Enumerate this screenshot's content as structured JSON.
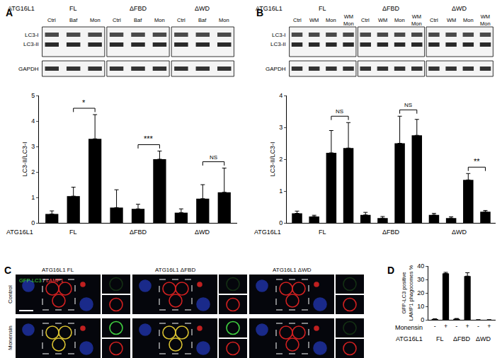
{
  "panel_labels": [
    "A",
    "B",
    "C",
    "D"
  ],
  "blots": [
    {
      "group_title": "ATG16L1",
      "groups": [
        "FL",
        "ΔFBD",
        "ΔWD"
      ],
      "lanes": [
        "Ctrl",
        "Baf",
        "Mon",
        "Ctrl",
        "Baf",
        "Mon",
        "Ctrl",
        "Baf",
        "Mon"
      ],
      "bands": [
        "LC3-I",
        "LC3-II"
      ],
      "loading": "GAPDH"
    },
    {
      "group_title": "ATG16L1",
      "groups": [
        "FL",
        "ΔFBD",
        "ΔWD"
      ],
      "lanes": [
        "Ctrl",
        "WM",
        "Mon",
        "WM\nMon",
        "Ctrl",
        "WM",
        "Mon",
        "WM\nMon",
        "Ctrl",
        "WM",
        "Mon",
        "WM\nMon"
      ],
      "bands": [
        "LC3-I",
        "LC3-II"
      ],
      "loading": "GAPDH"
    }
  ],
  "chart_data": [
    {
      "type": "bar",
      "categories": [
        null,
        null,
        null,
        null,
        null,
        null,
        null,
        null,
        null
      ],
      "values": [
        0.35,
        1.05,
        3.3,
        0.6,
        0.55,
        2.5,
        0.4,
        0.95,
        1.2
      ],
      "errors": [
        0.12,
        0.35,
        0.95,
        0.7,
        0.18,
        0.32,
        0.15,
        0.55,
        0.95
      ],
      "color": "#000000",
      "ylim": [
        0,
        5
      ],
      "yticks": [
        0,
        1,
        2,
        3,
        4,
        5
      ],
      "ylabel": "LC3-II/LC3-I",
      "tick_labels": "y",
      "grid": false,
      "group_title": "ATG16L1",
      "groups": [
        "FL",
        "ΔFBD",
        "ΔWD"
      ],
      "significance": [
        {
          "from": 1,
          "to": 2,
          "label": "*"
        },
        {
          "from": 4,
          "to": 5,
          "label": "***"
        },
        {
          "from": 7,
          "to": 8,
          "label": "NS"
        }
      ]
    },
    {
      "type": "bar",
      "categories": [
        null,
        null,
        null,
        null,
        null,
        null,
        null,
        null,
        null,
        null,
        null,
        null
      ],
      "values": [
        0.3,
        0.2,
        2.2,
        2.35,
        0.25,
        0.15,
        2.5,
        2.75,
        0.25,
        0.15,
        1.35,
        0.35
      ],
      "errors": [
        0.07,
        0.04,
        0.7,
        0.8,
        0.08,
        0.05,
        0.85,
        0.5,
        0.05,
        0.04,
        0.2,
        0.04
      ],
      "color": "#000000",
      "ylim": [
        0,
        4
      ],
      "yticks": [
        0,
        1,
        2,
        3,
        4
      ],
      "ylabel": "LC3-II/LC3-I",
      "tick_labels": "y",
      "grid": false,
      "group_title": "ATG16L1",
      "groups": [
        "FL",
        "ΔFBD",
        "ΔWD"
      ],
      "significance": [
        {
          "from": 2,
          "to": 3,
          "label": "NS"
        },
        {
          "from": 6,
          "to": 7,
          "label": "NS"
        },
        {
          "from": 10,
          "to": 11,
          "label": "**"
        }
      ]
    },
    {
      "type": "bar",
      "categories": [
        "-",
        "+",
        "-",
        "+",
        "-",
        "+"
      ],
      "values": [
        0.5,
        34.5,
        0.7,
        32.5,
        0,
        0
      ],
      "errors": [
        0.2,
        0.8,
        0.3,
        2.5,
        0,
        0
      ],
      "color": "#000000",
      "ylim": [
        0,
        40
      ],
      "yticks": [
        0,
        10,
        20,
        30,
        40
      ],
      "ylabel": "GFP-LC3 positive\nLAMP1 phagocomes %",
      "grid": false,
      "row_title": "Monensin",
      "group_title": "ATG16L1",
      "groups": [
        "FL",
        "ΔFBD",
        "ΔWD"
      ]
    }
  ],
  "microscopy": {
    "stain": {
      "green": "GFP-LC3",
      "separator": "/",
      "red": "LAMP1"
    },
    "columns": [
      "ATG16L1 FL",
      "ATG16L1 ΔFBD",
      "ATG16L1 ΔWD"
    ],
    "rows": [
      "Control",
      "Monensin"
    ]
  }
}
